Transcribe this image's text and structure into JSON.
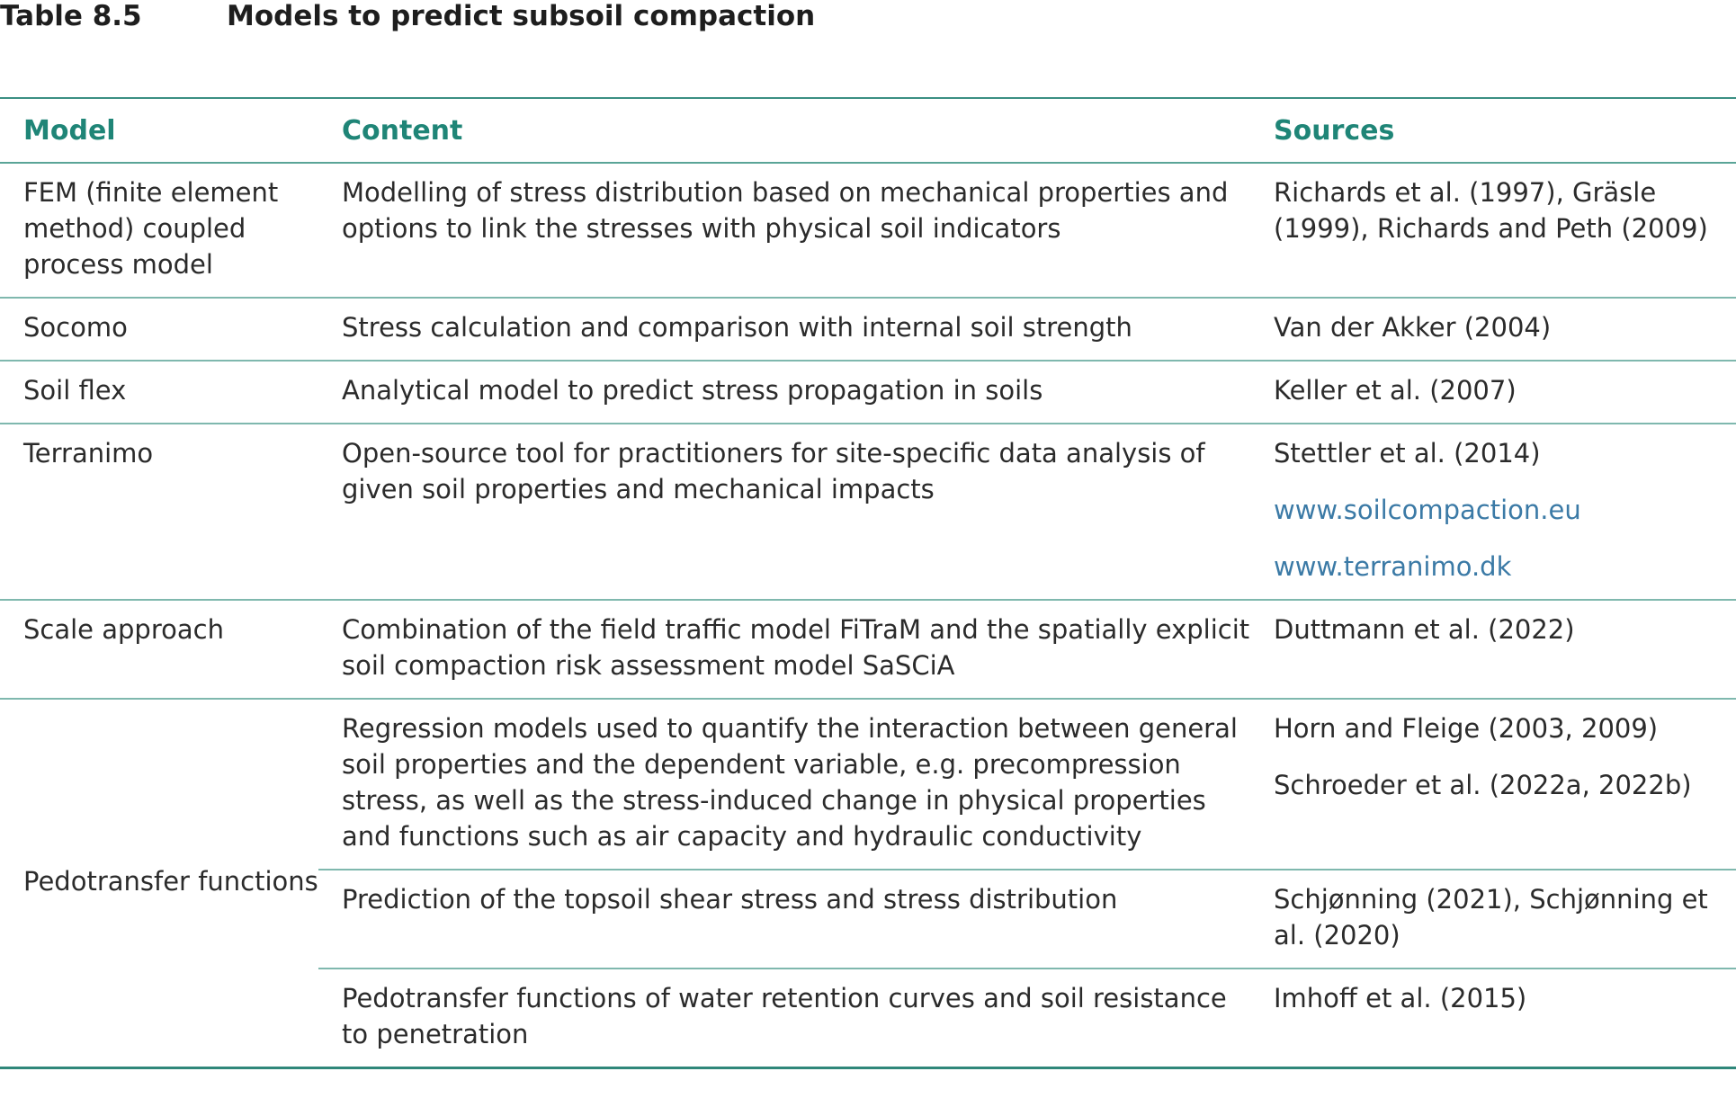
{
  "caption": {
    "number": "Table 8.5",
    "title": "Models to predict subsoil compaction"
  },
  "headers": {
    "model": "Model",
    "content": "Content",
    "sources": "Sources"
  },
  "rows": [
    {
      "model": "FEM (finite element method) coupled process model",
      "content": "Modelling of stress distribution based on mechanical properties and options to link the stresses with physical soil indicators",
      "sources": [
        "Richards et al. (1997), Gräsle (1999), Richards and Peth (2009)"
      ]
    },
    {
      "model": "Socomo",
      "content": "Stress calculation and comparison with internal soil strength",
      "sources": [
        "Van der Akker (2004)"
      ]
    },
    {
      "model": "Soil flex",
      "content": "Analytical model to predict stress propagation in soils",
      "sources": [
        "Keller et al. (2007)"
      ]
    },
    {
      "model": "Terranimo",
      "content": "Open-source tool for practitioners for site-specific data analysis of given soil properties and mechanical impacts",
      "sources": [
        "Stettler et al. (2014)"
      ],
      "links": [
        "www.soilcompaction.eu",
        "www.terranimo.dk"
      ]
    },
    {
      "model": "Scale approach",
      "content": "Combination of the field traffic model FiTraM and the spatially explicit soil compaction risk assessment model SaSCiA",
      "sources": [
        "Duttmann et al. (2022)"
      ]
    }
  ],
  "pedotransfer": {
    "model": "Pedotransfer functions",
    "entries": [
      {
        "content": "Regression models used to quantify the interaction between general soil properties and the dependent variable, e.g. precompression stress, as well as the stress-induced change in physical properties and functions such as air capacity and hydraulic conductivity",
        "sources": [
          "Horn and Fleige (2003, 2009)",
          "Schroeder et al. (2022a, 2022b)"
        ]
      },
      {
        "content": "Prediction of the topsoil shear stress and stress distribution",
        "sources": [
          "Schjønning (2021), Schjønning et al. (2020)"
        ]
      },
      {
        "content": "Pedotransfer functions of water retention curves and soil resistance to penetration",
        "sources": [
          "Imhoff et al. (2015)"
        ]
      }
    ]
  },
  "colors": {
    "header_text": "#1f8577",
    "rule": "#2f877a",
    "link": "#3b7aa6",
    "body_text": "#2b2b2b"
  }
}
